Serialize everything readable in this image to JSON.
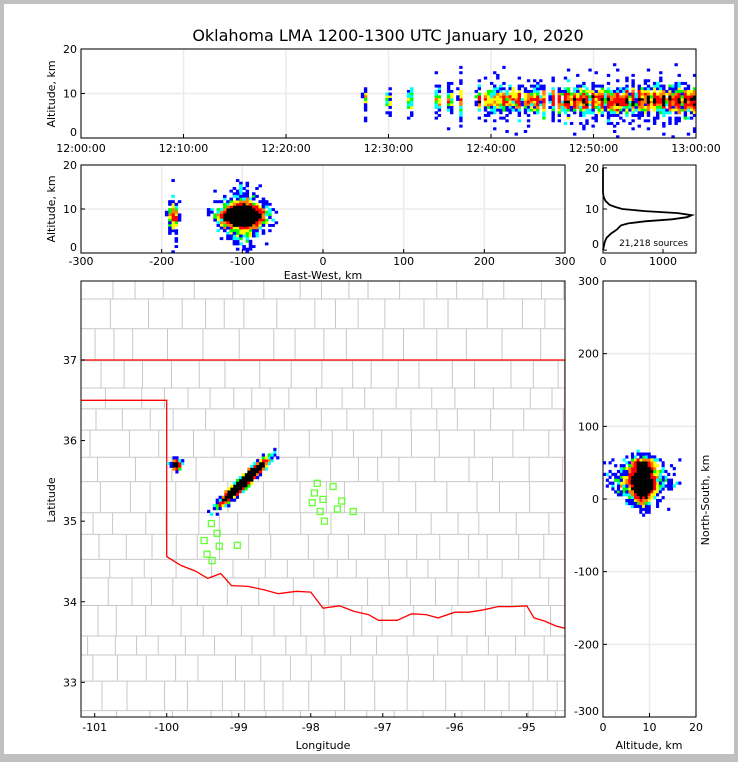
{
  "chart_data": [
    {
      "id": "time_height",
      "type": "heatmap",
      "title": "Oklahoma LMA 1200-1300 UTC January 10, 2020",
      "ylabel": "Altitude, km",
      "xlabel": "",
      "xlim_minutes_after_1200": [
        0,
        60
      ],
      "ylim": [
        0,
        20
      ],
      "xtick_labels": [
        "12:00:00",
        "12:10:00",
        "12:20:00",
        "12:30:00",
        "12:40:00",
        "12:50:00",
        "13:00:00"
      ],
      "ytick_labels": [
        "0",
        "10",
        "20"
      ],
      "flash_times_minutes": [
        27.7,
        30.0,
        32.1,
        34.8,
        36.0,
        37.0,
        38.8,
        39.6,
        40.2,
        40.8,
        41.2,
        41.7,
        42.3,
        42.8,
        43.5,
        44.1,
        44.6,
        45.1,
        46.0,
        46.7,
        47.2,
        47.6,
        48.1,
        48.6,
        49.0,
        49.4,
        49.9,
        50.4,
        50.9,
        51.4,
        51.9,
        52.3,
        52.8,
        53.3,
        53.8,
        54.4,
        54.9,
        55.4,
        55.9,
        56.4,
        56.9,
        57.4,
        57.9,
        58.4,
        58.9,
        59.4,
        59.8
      ],
      "grid": true
    },
    {
      "id": "ew_height",
      "type": "heatmap",
      "xlabel": "East-West, km",
      "ylabel": "Altitude, km",
      "xlim": [
        -300,
        300
      ],
      "ylim": [
        0,
        20
      ],
      "xtick_labels": [
        "-300",
        "-200",
        "-100",
        "0",
        "100",
        "200",
        "300"
      ],
      "ytick_labels": [
        "0",
        "10",
        "20"
      ],
      "grid": true
    },
    {
      "id": "altitude_histogram",
      "type": "line",
      "xlim": [
        0,
        1550
      ],
      "ylim": [
        -0.7,
        20.7
      ],
      "xtick_labels": [
        "0",
        "1000"
      ],
      "ytick_labels": [
        "0",
        "10",
        "20"
      ],
      "altitude_km": [
        0,
        1,
        2,
        3,
        4,
        5,
        6,
        6.5,
        7,
        7.5,
        8,
        8.5,
        9,
        9.5,
        10,
        10.5,
        11,
        12,
        13,
        14,
        20
      ],
      "sources": [
        0,
        15,
        30,
        60,
        130,
        230,
        300,
        420,
        700,
        1150,
        1400,
        1480,
        1250,
        700,
        320,
        200,
        110,
        40,
        10,
        0,
        0
      ],
      "annotation": "21,218 sources"
    },
    {
      "id": "plan_view",
      "type": "scatter",
      "xlabel": "Longitude",
      "ylabel": "Latitude",
      "xlim": [
        -101.19,
        -94.47
      ],
      "ylim": [
        32.57,
        37.98
      ],
      "xtick_labels": [
        "-101",
        "-100",
        "-99",
        "-98",
        "-97",
        "-96",
        "-95"
      ],
      "ytick_labels": [
        "33",
        "34",
        "35",
        "36",
        "37"
      ],
      "source_clusters": [
        {
          "lon": -98.93,
          "lat": 35.49,
          "share": 0.96
        },
        {
          "lon": -99.87,
          "lat": 35.7,
          "share": 0.04
        }
      ],
      "stations": [
        [
          -97.91,
          35.47
        ],
        [
          -97.69,
          35.43
        ],
        [
          -97.95,
          35.35
        ],
        [
          -97.83,
          35.27
        ],
        [
          -97.98,
          35.23
        ],
        [
          -97.57,
          35.25
        ],
        [
          -97.87,
          35.12
        ],
        [
          -97.63,
          35.15
        ],
        [
          -97.41,
          35.12
        ],
        [
          -97.81,
          35.0
        ],
        [
          -99.38,
          34.97
        ],
        [
          -99.3,
          34.85
        ],
        [
          -99.48,
          34.76
        ],
        [
          -99.27,
          34.69
        ],
        [
          -99.02,
          34.7
        ],
        [
          -99.44,
          34.59
        ],
        [
          -99.37,
          34.51
        ]
      ],
      "oklahoma_border": [
        [
          -101.19,
          37.0
        ],
        [
          -94.47,
          37.0
        ],
        [
          -94.47,
          33.67
        ],
        [
          -94.6,
          33.7
        ],
        [
          -94.75,
          33.76
        ],
        [
          -94.9,
          33.8
        ],
        [
          -95.0,
          33.95
        ],
        [
          -95.2,
          33.94
        ],
        [
          -95.4,
          33.94
        ],
        [
          -95.6,
          33.9
        ],
        [
          -95.8,
          33.87
        ],
        [
          -96.0,
          33.87
        ],
        [
          -96.23,
          33.8
        ],
        [
          -96.4,
          33.84
        ],
        [
          -96.6,
          33.85
        ],
        [
          -96.8,
          33.77
        ],
        [
          -97.06,
          33.77
        ],
        [
          -97.2,
          33.84
        ],
        [
          -97.4,
          33.88
        ],
        [
          -97.6,
          33.95
        ],
        [
          -97.83,
          33.92
        ],
        [
          -98.0,
          34.12
        ],
        [
          -98.2,
          34.13
        ],
        [
          -98.45,
          34.1
        ],
        [
          -98.65,
          34.15
        ],
        [
          -98.87,
          34.19
        ],
        [
          -99.1,
          34.2
        ],
        [
          -99.25,
          34.35
        ],
        [
          -99.43,
          34.29
        ],
        [
          -99.6,
          34.38
        ],
        [
          -99.8,
          34.45
        ],
        [
          -100.0,
          34.56
        ],
        [
          -100.0,
          36.5
        ],
        [
          -101.19,
          36.5
        ]
      ]
    },
    {
      "id": "ns_height",
      "type": "heatmap",
      "xlabel": "Altitude, km",
      "ylabel": "North-South, km",
      "xlim": [
        0,
        20
      ],
      "ylim": [
        -300,
        300
      ],
      "xtick_labels": [
        "0",
        "10",
        "20"
      ],
      "ytick_labels": [
        "-300",
        "-200",
        "-100",
        "0",
        "100",
        "200",
        "300"
      ],
      "grid": true
    }
  ],
  "colors": {
    "density": [
      "#0000ff",
      "#00ffff",
      "#00ff00",
      "#ffff00",
      "#ff8000",
      "#ff0000",
      "#000000"
    ],
    "state_border": "#ff0000",
    "county_lines": "#c8c8c8",
    "stations": "#66ff33",
    "grid": "#ebebeb"
  }
}
